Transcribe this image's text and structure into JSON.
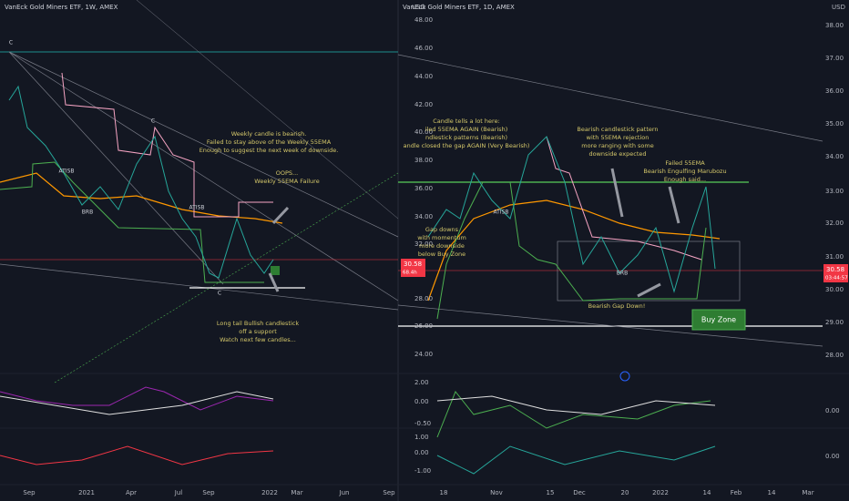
{
  "left_chart": {
    "title": "VanEck Gold Miners ETF, 1W, AMEX",
    "currency": "USD",
    "price_ticks": [
      "48.00",
      "46.00",
      "44.00",
      "42.00",
      "40.00",
      "38.00",
      "36.00",
      "34.00",
      "32.00",
      "28.00",
      "26.00",
      "24.00"
    ],
    "indicator_ticks": [
      "2.00",
      "0.00",
      "-0.50",
      "1.00",
      "0.00",
      "-1.00"
    ],
    "time_labels": [
      "Sep",
      "2021",
      "Apr",
      "Jul",
      "Sep",
      "2022",
      "Mar",
      "Jun",
      "Sep"
    ],
    "price_badge": {
      "price": "30.58",
      "countdown": "68.4h"
    },
    "markers": [
      "C",
      "C",
      "C",
      "ATISB",
      "BRB",
      "ATISB"
    ],
    "annotations": [
      {
        "lines": [
          "Weekly candle is bearish.",
          "Failed to stay above of the Weekly 55EMA",
          "Enough to suggest the next week of downside."
        ]
      },
      {
        "lines": [
          "OOPS...",
          "Weekly 55EMA Failure"
        ]
      },
      {
        "lines": [
          "Long tail Bullish candlestick",
          "off a support",
          "Watch next few candles..."
        ]
      }
    ]
  },
  "right_chart": {
    "title": "VanEck Gold Miners ETF, 1D, AMEX",
    "currency": "USD",
    "price_ticks": [
      "38.00",
      "37.00",
      "36.00",
      "35.00",
      "34.00",
      "33.00",
      "32.00",
      "31.00",
      "30.00",
      "29.00",
      "28.00"
    ],
    "indicator_ticks": [
      "0.00",
      "0.00"
    ],
    "time_labels": [
      "18",
      "Nov",
      "15",
      "Dec",
      "20",
      "2022",
      "14",
      "Feb",
      "14",
      "Mar"
    ],
    "price_badge": {
      "price": "30.58",
      "countdown": "03:44:57"
    },
    "markers": [
      "ATISB",
      "BRB"
    ],
    "annotations": [
      {
        "lines": [
          "Candle tells a lot here:",
          "iled 55EMA AGAIN (Bearish)",
          "ndlestick patterns (Bearish)",
          "andle closed the gap AGAIN (Very Bearish)"
        ]
      },
      {
        "lines": [
          "Bearish candlestick pattern",
          "with 55EMA rejection",
          "more ranging with some",
          "downside expected"
        ]
      },
      {
        "lines": [
          "Failed 55EMA",
          "Bearish Engulfing Marubozu",
          "Enough said..."
        ]
      },
      {
        "lines": [
          "Gap downs",
          "with momentum",
          "more downside",
          "below Buy Zone"
        ]
      },
      {
        "lines": [
          "Bearish Gap Down!"
        ]
      }
    ],
    "buy_zone": "Buy Zone"
  }
}
